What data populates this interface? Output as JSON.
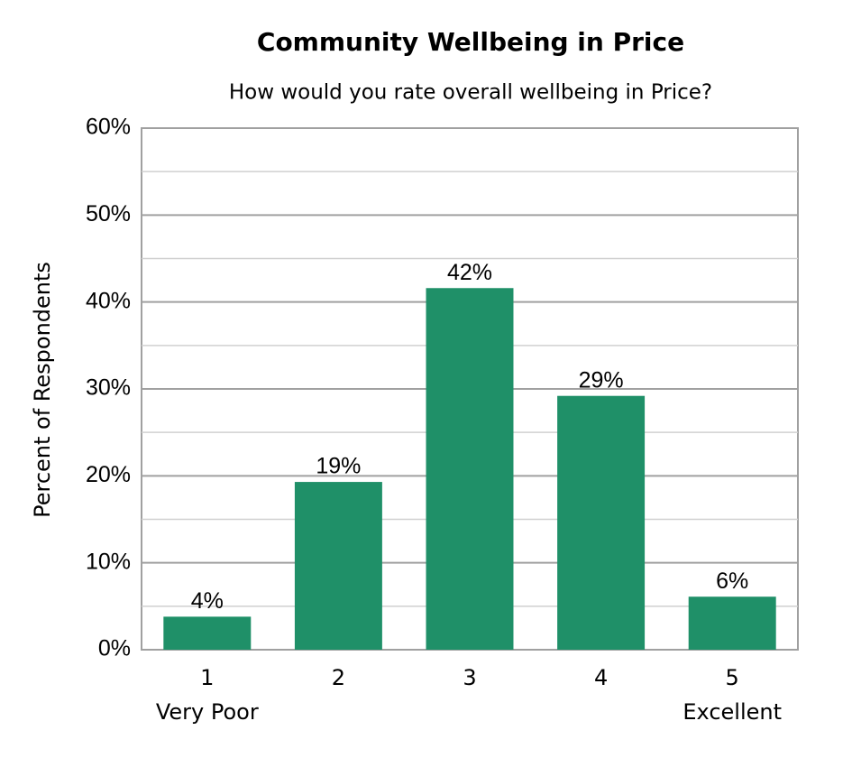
{
  "chart_data": {
    "type": "bar",
    "title": "Community Wellbeing in Price",
    "subtitle": "How would you rate overall wellbeing in Price?",
    "y_label": "Percent of Respondents",
    "categories": [
      "1",
      "2",
      "3",
      "4",
      "5"
    ],
    "category_sublabels": [
      "Very Poor",
      null,
      null,
      null,
      "Excellent"
    ],
    "values": [
      3.8,
      19.3,
      41.6,
      29.2,
      6.1
    ],
    "value_labels": [
      "4%",
      "19%",
      "42%",
      "29%",
      "6%"
    ],
    "color": "#1f9068",
    "ylim": [
      0,
      60
    ],
    "yticks": [
      {
        "value": 0,
        "label": "0%"
      },
      {
        "value": 10,
        "label": "10%"
      },
      {
        "value": 20,
        "label": "20%"
      },
      {
        "value": 30,
        "label": "30%"
      },
      {
        "value": 40,
        "label": "40%"
      },
      {
        "value": 50,
        "label": "50%"
      },
      {
        "value": 60,
        "label": "60%"
      }
    ],
    "minor_grid": [
      5,
      15,
      25,
      35,
      45,
      55
    ],
    "grid": true
  }
}
